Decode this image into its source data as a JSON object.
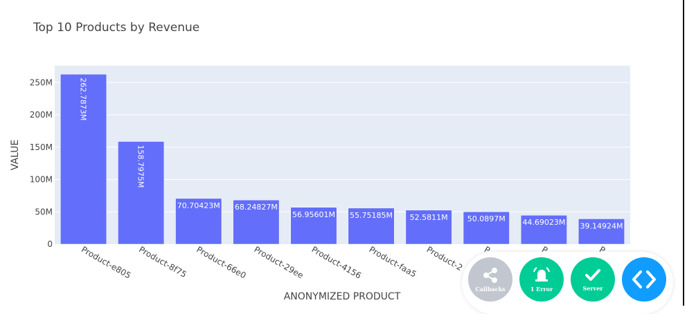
{
  "chart_data": {
    "type": "bar",
    "title": "Top 10 Products by Revenue",
    "xlabel": "ANONYMIZED PRODUCT",
    "ylabel": "VALUE",
    "categories": [
      "Product-e805",
      "Product-8f75",
      "Product-66e0",
      "Product-29ee",
      "Product-4156",
      "Product-faa5",
      "Product-2",
      "P",
      "P",
      "P"
    ],
    "values": [
      262787300,
      158797500,
      70704230,
      68248270,
      56956010,
      55751850,
      52581100,
      50089700,
      44690230,
      39149240
    ],
    "data_labels": [
      "262.7873M",
      "158.7975M",
      "70.70423M",
      "68.24827M",
      "56.95601M",
      "55.75185M",
      "52.5811M",
      "50.0897M",
      "44.69023M",
      "39.14924M"
    ],
    "yticks": [
      0,
      50000000,
      100000000,
      150000000,
      200000000,
      250000000
    ],
    "ytick_labels": [
      "0",
      "50M",
      "100M",
      "150M",
      "200M",
      "250M"
    ],
    "ylim": [
      0,
      276000000
    ],
    "grid": true,
    "colors": {
      "bar": "#636efa",
      "plot_bg": "#e5ecf6",
      "grid": "#ffffff",
      "text": "#444444"
    }
  },
  "devtools": {
    "callbacks_label": "Callbacks",
    "errors_label": "1 Error",
    "server_label": "Server",
    "icons": [
      "share-icon",
      "bell-icon",
      "check-icon",
      "code-icon"
    ],
    "colors": {
      "inactive": "#c1c6cf",
      "ok": "#00cc96",
      "code": "#119dff"
    }
  }
}
